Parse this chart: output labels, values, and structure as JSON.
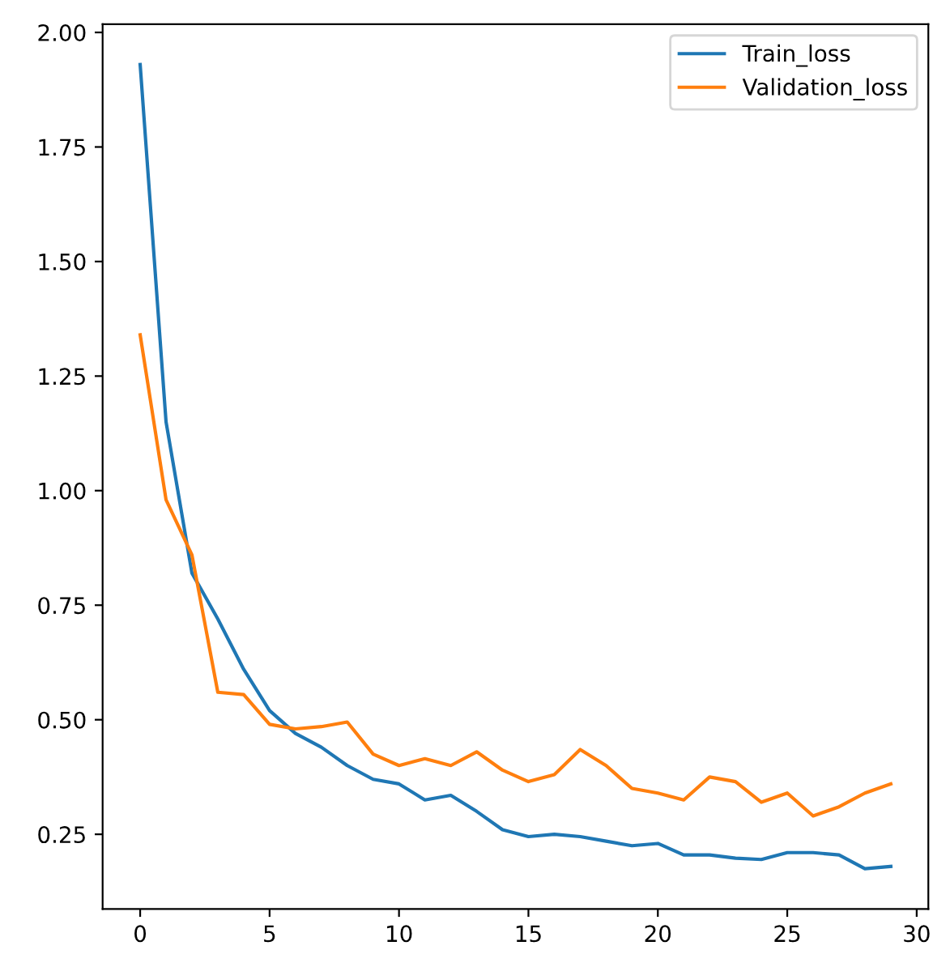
{
  "chart_data": {
    "type": "line",
    "x": [
      0,
      1,
      2,
      3,
      4,
      5,
      6,
      7,
      8,
      9,
      10,
      11,
      12,
      13,
      14,
      15,
      16,
      17,
      18,
      19,
      20,
      21,
      22,
      23,
      24,
      25,
      26,
      27,
      28,
      29
    ],
    "series": [
      {
        "name": "Train_loss",
        "color": "#1f77b4",
        "values": [
          1.93,
          1.15,
          0.82,
          0.72,
          0.61,
          0.52,
          0.47,
          0.44,
          0.4,
          0.37,
          0.36,
          0.325,
          0.335,
          0.3,
          0.26,
          0.245,
          0.25,
          0.245,
          0.235,
          0.225,
          0.23,
          0.205,
          0.205,
          0.198,
          0.195,
          0.21,
          0.21,
          0.205,
          0.175,
          0.18
        ]
      },
      {
        "name": "Validation_loss",
        "color": "#ff7f0e",
        "values": [
          1.34,
          0.98,
          0.86,
          0.56,
          0.555,
          0.49,
          0.48,
          0.485,
          0.495,
          0.425,
          0.4,
          0.415,
          0.4,
          0.43,
          0.39,
          0.365,
          0.38,
          0.435,
          0.4,
          0.35,
          0.34,
          0.325,
          0.375,
          0.365,
          0.32,
          0.34,
          0.29,
          0.31,
          0.34,
          0.36
        ]
      }
    ],
    "xlim": [
      -1.45,
      30.45
    ],
    "ylim": [
      0.087,
      2.018
    ],
    "xticks": [
      0,
      5,
      10,
      15,
      20,
      25,
      30
    ],
    "yticks": [
      {
        "value": 0.25,
        "label": "0.25"
      },
      {
        "value": 0.5,
        "label": "0.50"
      },
      {
        "value": 0.75,
        "label": "0.75"
      },
      {
        "value": 1.0,
        "label": "1.00"
      },
      {
        "value": 1.25,
        "label": "1.25"
      },
      {
        "value": 1.5,
        "label": "1.50"
      },
      {
        "value": 1.75,
        "label": "1.75"
      },
      {
        "value": 2.0,
        "label": "2.00"
      }
    ],
    "legend": "top right",
    "grid": false,
    "line_style": "solid"
  }
}
